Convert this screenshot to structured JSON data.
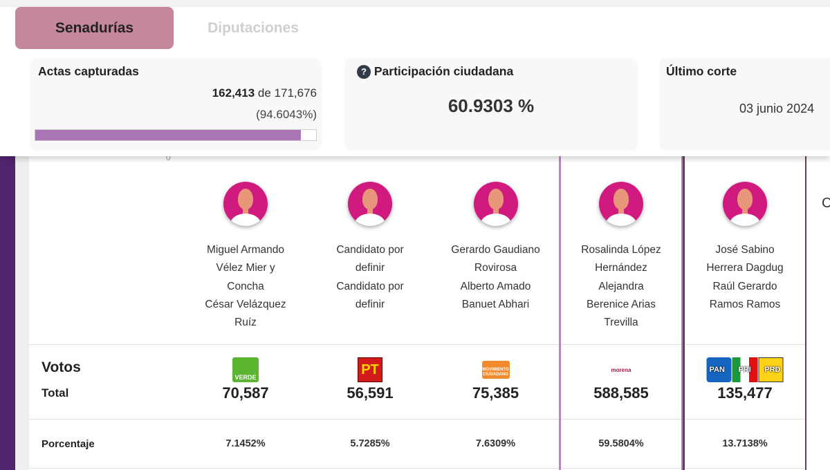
{
  "tabs": [
    {
      "label": "Senadurías",
      "active": true
    },
    {
      "label": "Diputaciones",
      "active": false
    }
  ],
  "actas": {
    "title": "Actas capturadas",
    "captured": "162,413",
    "of_label": "de",
    "total": "171,676",
    "percent_text": "(94.6043%)",
    "progress_percent": 94.6043
  },
  "participacion": {
    "title": "Participación ciudadana",
    "value": "60.9303 %",
    "icon": "question-circle-icon"
  },
  "corte": {
    "title": "Último corte",
    "date": "03 junio 2024"
  },
  "table": {
    "votos_label": "Votos",
    "total_label": "Total",
    "porcentaje_label": "Porcentaje",
    "stray_zero": "0",
    "partial_next_col_text": "C",
    "candidates": [
      {
        "names": [
          "Miguel Armando",
          "Vélez Mier y",
          "Concha",
          "César Velázquez",
          "Ruíz"
        ],
        "party": "VERDE",
        "votes": "70,587",
        "percent": "7.1452%"
      },
      {
        "names": [
          "Candidato por",
          "definir",
          "Candidato por",
          "definir"
        ],
        "party": "PT",
        "votes": "56,591",
        "percent": "5.7285%"
      },
      {
        "names": [
          "Gerardo Gaudiano",
          "Rovirosa",
          "Alberto Amado",
          "Banuet Abhari"
        ],
        "party": "MOVIMIENTO CIUDADANO",
        "votes": "75,385",
        "percent": "7.6309%"
      },
      {
        "names": [
          "Rosalinda López",
          "Hernández",
          "Alejandra",
          "Berenice Arias",
          "Trevilla"
        ],
        "party": "morena",
        "votes": "588,585",
        "percent": "59.5804%"
      },
      {
        "names": [
          "José Sabino",
          "Herrera Dagdug",
          "Raúl Gerardo",
          "Ramos Ramos"
        ],
        "party": "PAN PRI PRD",
        "votes": "135,477",
        "percent": "13.7138%"
      }
    ]
  },
  "colors": {
    "accent_tab": "#c4889a",
    "progress": "#a975b4",
    "sidebar": "#4f2570",
    "avatar": "#d11a7f"
  }
}
